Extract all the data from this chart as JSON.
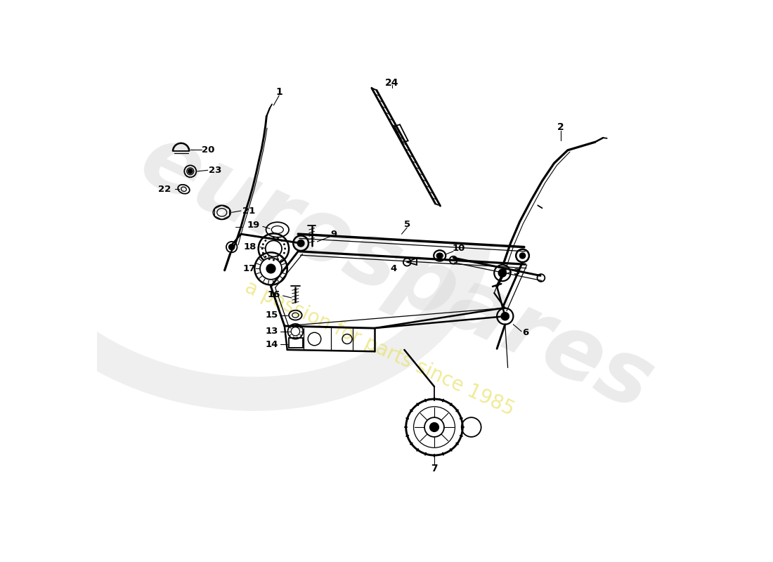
{
  "background_color": "#ffffff",
  "watermark_text1": "eurospares",
  "watermark_text2": "a passion for parts since 1985",
  "lw": 1.3,
  "fig_w": 11.0,
  "fig_h": 8.0,
  "xlim": [
    0,
    11
  ],
  "ylim": [
    0,
    8
  ]
}
